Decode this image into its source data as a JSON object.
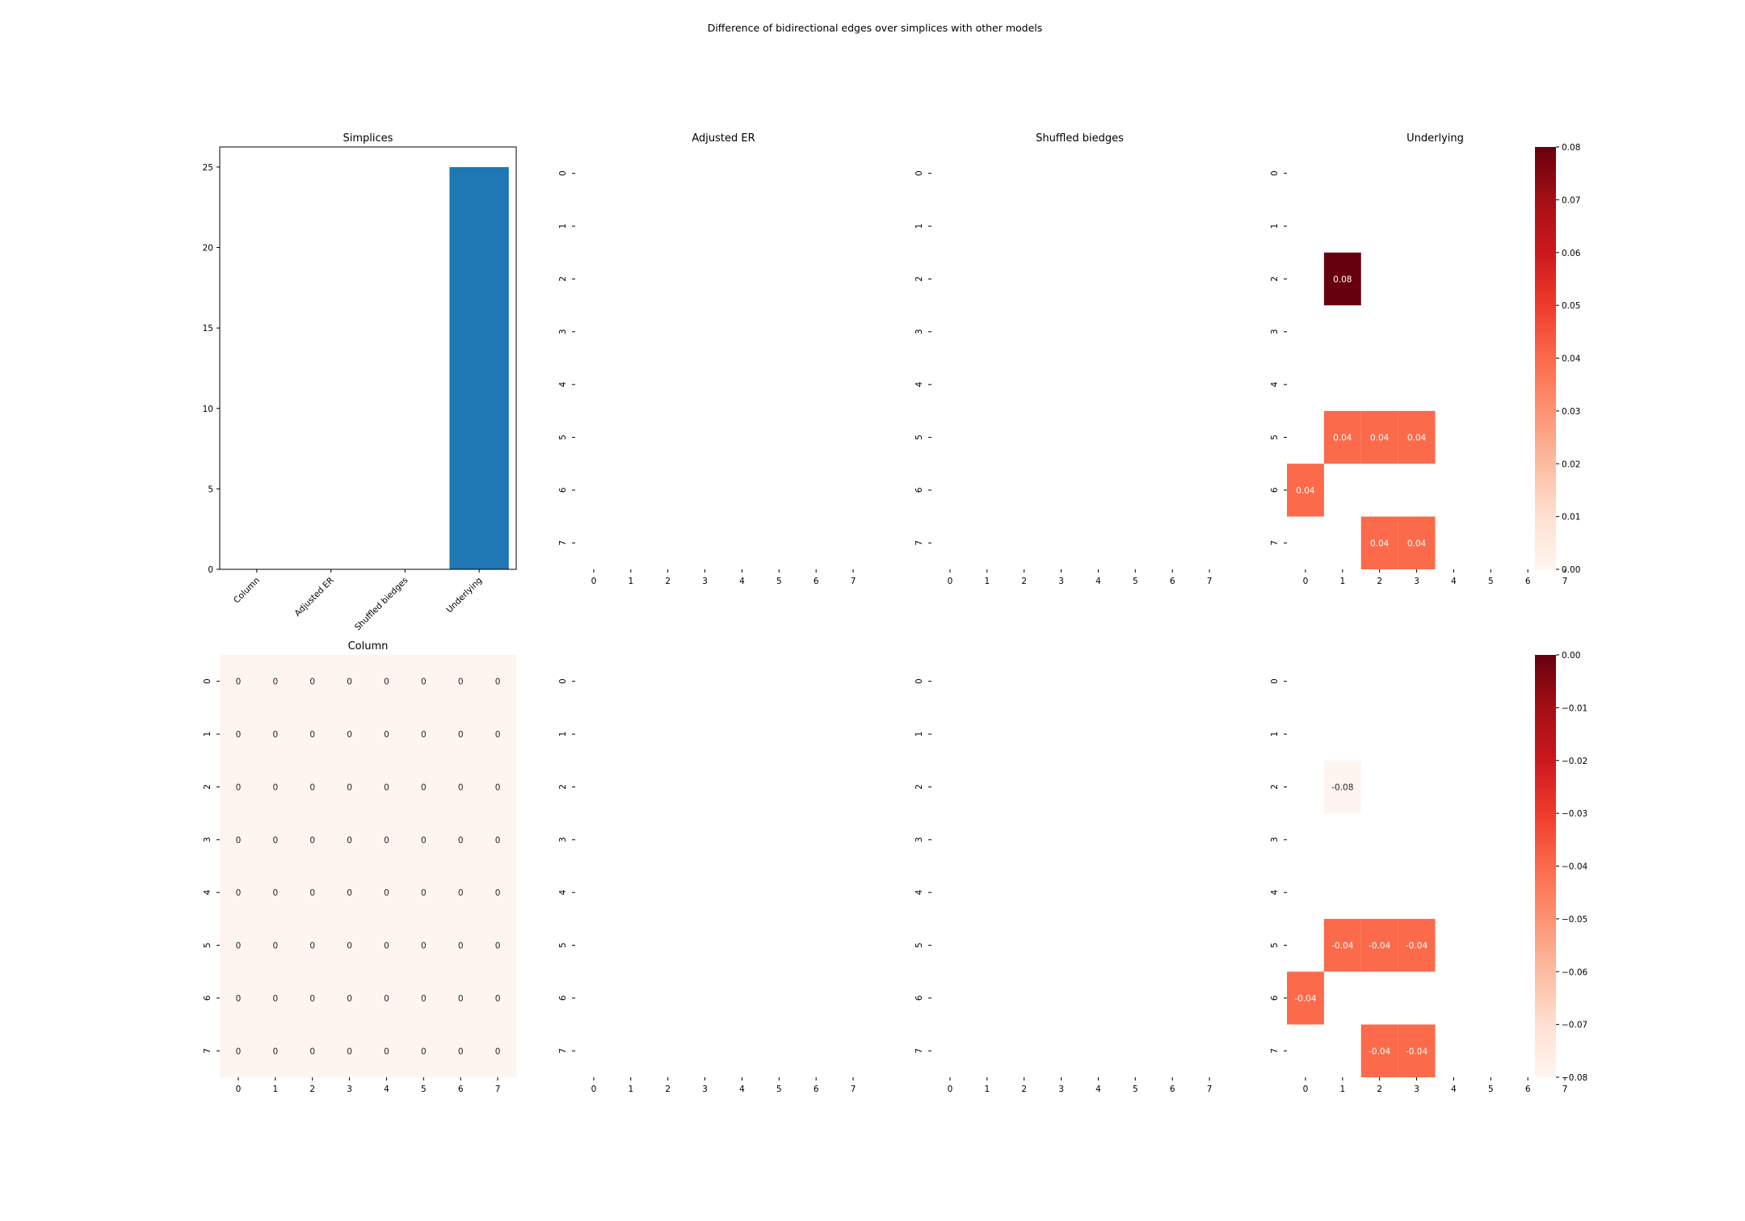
{
  "figure": {
    "suptitle": "Difference of bidirectional edges over simplices with other models"
  },
  "colors": {
    "bar": "#1f77b4",
    "cmap": "Reds",
    "cmap_stops": [
      "#fff5f0",
      "#fee0d2",
      "#fcbba1",
      "#fc9272",
      "#fb6a4a",
      "#ef3b2c",
      "#cb181d",
      "#a50f15",
      "#67000d"
    ]
  },
  "chart_data": [
    {
      "id": "bar",
      "type": "bar",
      "title": "Simplices",
      "categories": [
        "Column",
        "Adjusted ER",
        "Shuffled biedges",
        "Underlying"
      ],
      "values": [
        0,
        0,
        0,
        25
      ],
      "ylim": [
        0,
        26.25
      ],
      "yticks": [
        0,
        5,
        10,
        15,
        20,
        25
      ],
      "xlabel": "",
      "ylabel": ""
    },
    {
      "id": "h01",
      "type": "heatmap",
      "title": "Adjusted ER",
      "rows": [
        "0",
        "1",
        "2",
        "3",
        "4",
        "5",
        "6",
        "7"
      ],
      "cols": [
        "0",
        "1",
        "2",
        "3",
        "4",
        "5",
        "6",
        "7"
      ],
      "vmin": 0,
      "vmax": 0.08,
      "cells": []
    },
    {
      "id": "h02",
      "type": "heatmap",
      "title": "Shuffled biedges",
      "rows": [
        "0",
        "1",
        "2",
        "3",
        "4",
        "5",
        "6",
        "7"
      ],
      "cols": [
        "0",
        "1",
        "2",
        "3",
        "4",
        "5",
        "6",
        "7"
      ],
      "vmin": 0,
      "vmax": 0.08,
      "cells": []
    },
    {
      "id": "h03",
      "type": "heatmap",
      "title": "Underlying",
      "rows": [
        "0",
        "1",
        "2",
        "3",
        "4",
        "5",
        "6",
        "7"
      ],
      "cols": [
        "0",
        "1",
        "2",
        "3",
        "4",
        "5",
        "6",
        "7"
      ],
      "vmin": 0,
      "vmax": 0.08,
      "cells": [
        {
          "r": 2,
          "c": 1,
          "v": 0.08,
          "label": "0.08"
        },
        {
          "r": 5,
          "c": 1,
          "v": 0.04,
          "label": "0.04"
        },
        {
          "r": 5,
          "c": 2,
          "v": 0.04,
          "label": "0.04"
        },
        {
          "r": 5,
          "c": 3,
          "v": 0.04,
          "label": "0.04"
        },
        {
          "r": 6,
          "c": 0,
          "v": 0.04,
          "label": "0.04"
        },
        {
          "r": 7,
          "c": 2,
          "v": 0.04,
          "label": "0.04"
        },
        {
          "r": 7,
          "c": 3,
          "v": 0.04,
          "label": "0.04"
        }
      ],
      "colorbar": {
        "vmin": 0,
        "vmax": 0.08,
        "ticks": [
          0.0,
          0.01,
          0.02,
          0.03,
          0.04,
          0.05,
          0.06,
          0.07,
          0.08
        ],
        "tick_labels": [
          "0.00",
          "0.01",
          "0.02",
          "0.03",
          "0.04",
          "0.05",
          "0.06",
          "0.07",
          "0.08"
        ]
      }
    },
    {
      "id": "h10",
      "type": "heatmap",
      "title": "Column",
      "rows": [
        "0",
        "1",
        "2",
        "3",
        "4",
        "5",
        "6",
        "7"
      ],
      "cols": [
        "0",
        "1",
        "2",
        "3",
        "4",
        "5",
        "6",
        "7"
      ],
      "vmin": 0,
      "vmax": 0.08,
      "fill_all": {
        "v": 0,
        "label": "0"
      },
      "cells": []
    },
    {
      "id": "h11",
      "type": "heatmap",
      "title": "",
      "rows": [
        "0",
        "1",
        "2",
        "3",
        "4",
        "5",
        "6",
        "7"
      ],
      "cols": [
        "0",
        "1",
        "2",
        "3",
        "4",
        "5",
        "6",
        "7"
      ],
      "vmin": -0.08,
      "vmax": 0,
      "cells": []
    },
    {
      "id": "h12",
      "type": "heatmap",
      "title": "",
      "rows": [
        "0",
        "1",
        "2",
        "3",
        "4",
        "5",
        "6",
        "7"
      ],
      "cols": [
        "0",
        "1",
        "2",
        "3",
        "4",
        "5",
        "6",
        "7"
      ],
      "vmin": -0.08,
      "vmax": 0,
      "cells": []
    },
    {
      "id": "h13",
      "type": "heatmap",
      "title": "",
      "rows": [
        "0",
        "1",
        "2",
        "3",
        "4",
        "5",
        "6",
        "7"
      ],
      "cols": [
        "0",
        "1",
        "2",
        "3",
        "4",
        "5",
        "6",
        "7"
      ],
      "vmin": -0.08,
      "vmax": 0,
      "cells": [
        {
          "r": 2,
          "c": 1,
          "v": -0.08,
          "label": "-0.08"
        },
        {
          "r": 5,
          "c": 1,
          "v": -0.04,
          "label": "-0.04"
        },
        {
          "r": 5,
          "c": 2,
          "v": -0.04,
          "label": "-0.04"
        },
        {
          "r": 5,
          "c": 3,
          "v": -0.04,
          "label": "-0.04"
        },
        {
          "r": 6,
          "c": 0,
          "v": -0.04,
          "label": "-0.04"
        },
        {
          "r": 7,
          "c": 2,
          "v": -0.04,
          "label": "-0.04"
        },
        {
          "r": 7,
          "c": 3,
          "v": -0.04,
          "label": "-0.04"
        }
      ],
      "colorbar": {
        "vmin": -0.08,
        "vmax": 0,
        "ticks": [
          -0.08,
          -0.07,
          -0.06,
          -0.05,
          -0.04,
          -0.03,
          -0.02,
          -0.01,
          0.0
        ],
        "tick_labels": [
          "−0.08",
          "−0.07",
          "−0.06",
          "−0.05",
          "−0.04",
          "−0.03",
          "−0.02",
          "−0.01",
          "0.00"
        ]
      }
    }
  ]
}
